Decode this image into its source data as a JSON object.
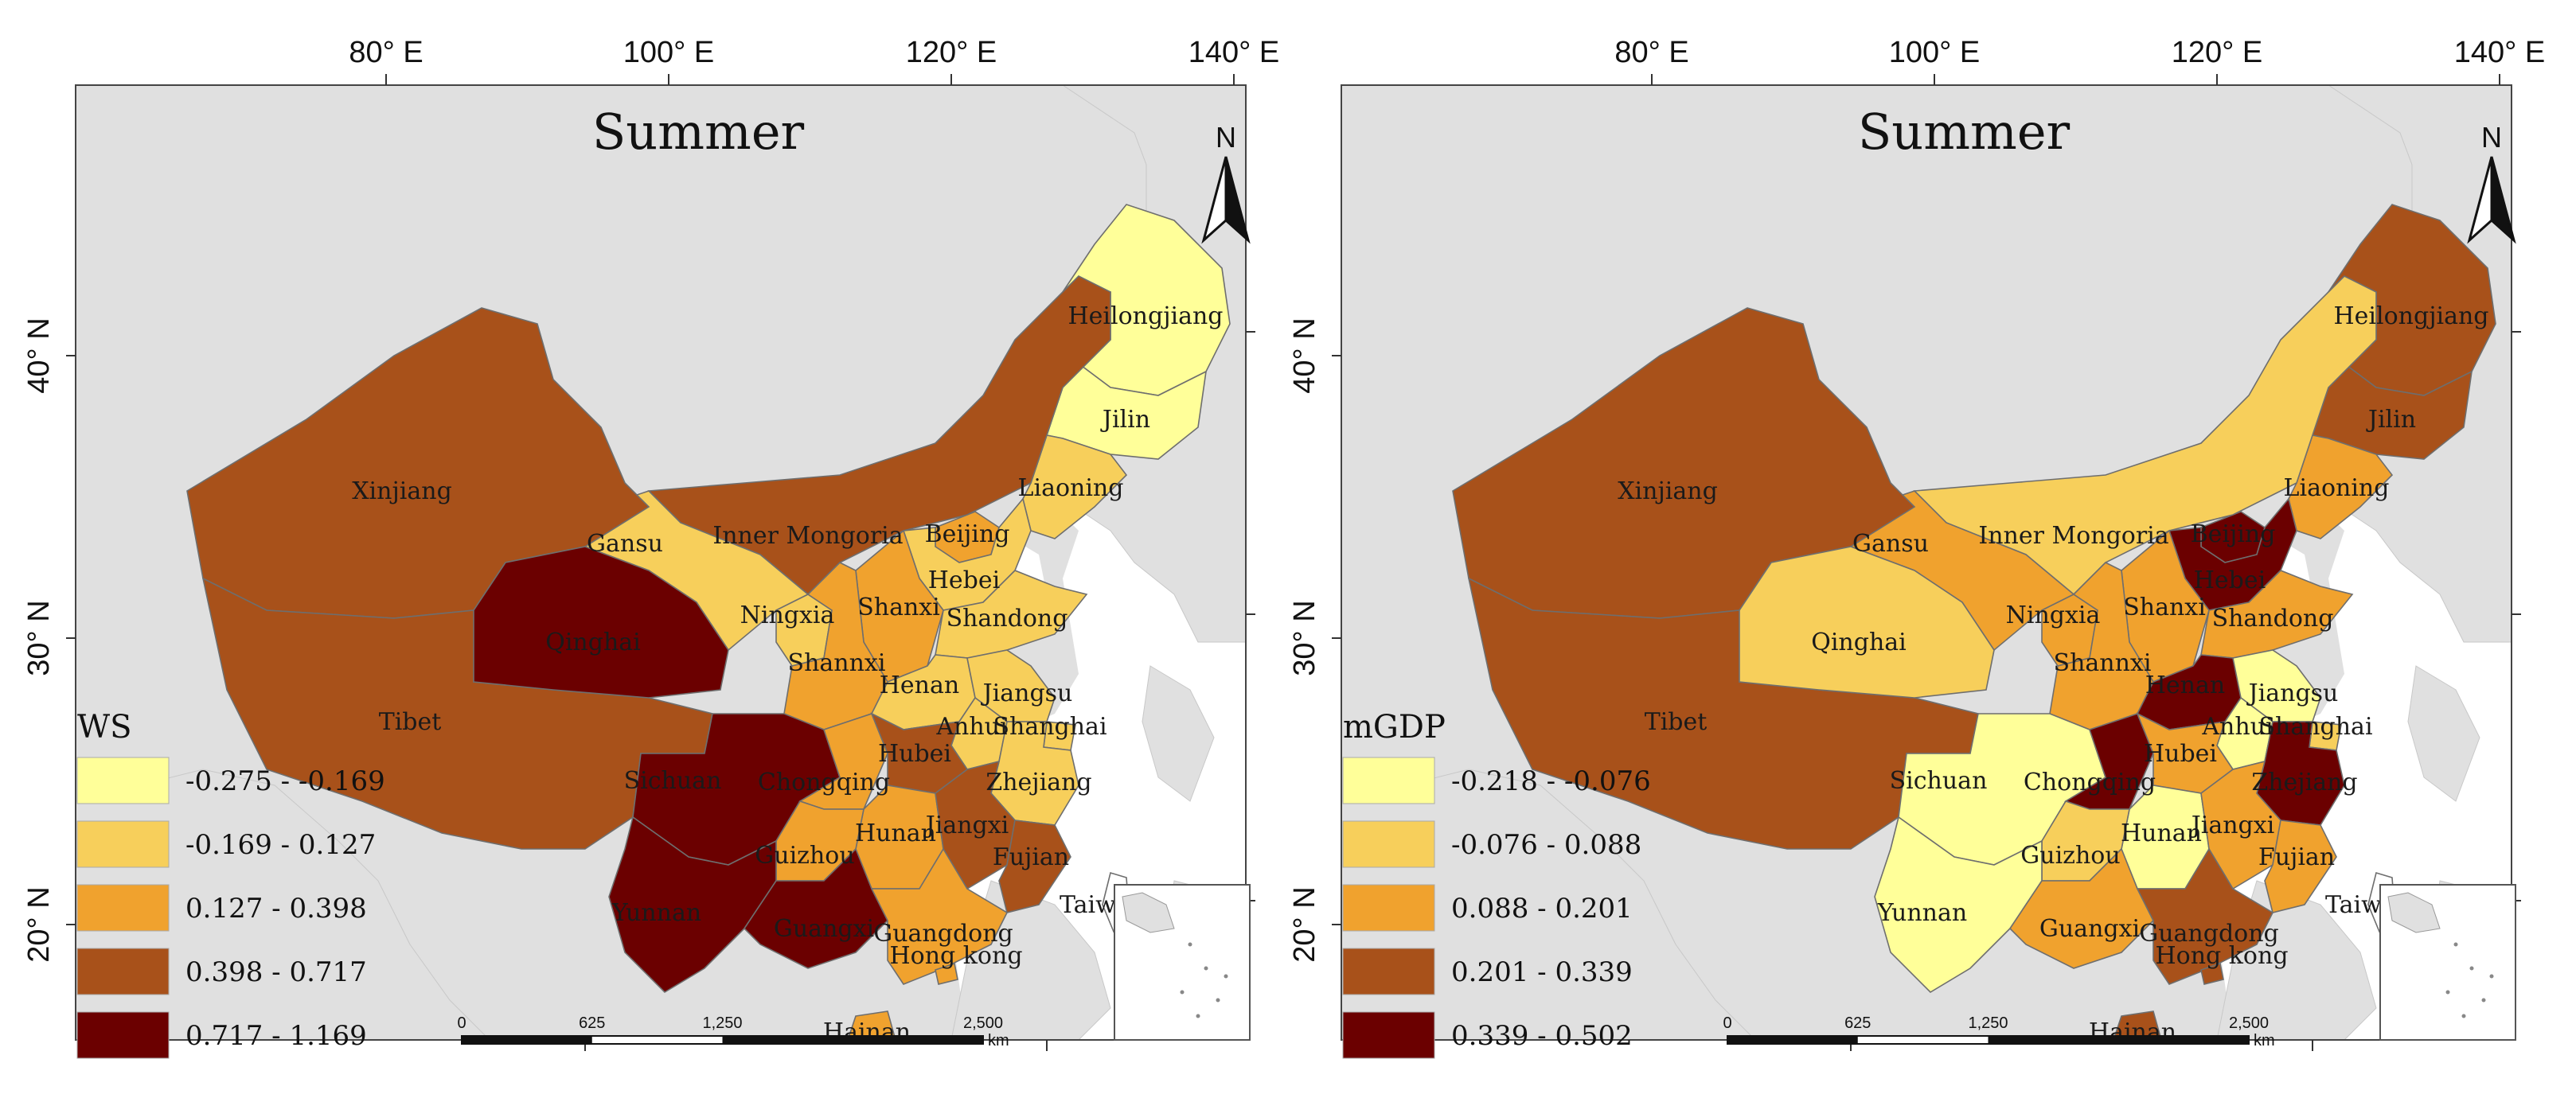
{
  "maps": [
    {
      "title": "Summer",
      "legend_title": "WS",
      "legend": [
        {
          "label": "-0.275 - -0.169",
          "color": "#ffff99"
        },
        {
          "label": "-0.169 - 0.127",
          "color": "#f7cf5b"
        },
        {
          "label": "0.127 - 0.398",
          "color": "#f0a22e"
        },
        {
          "label": "0.398 - 0.717",
          "color": "#a8511a"
        },
        {
          "label": "0.717 - 1.169",
          "color": "#6b0000"
        }
      ],
      "provinces": [
        {
          "name": "Heilongjiang",
          "class": 0
        },
        {
          "name": "Jilin",
          "class": 0
        },
        {
          "name": "Liaoning",
          "class": 1
        },
        {
          "name": "Beijing",
          "class": 2
        },
        {
          "name": "Hebei",
          "class": 1
        },
        {
          "name": "Shandong",
          "class": 1
        },
        {
          "name": "Inner Mongoria",
          "class": 3
        },
        {
          "name": "Gansu",
          "class": 1
        },
        {
          "name": "Ningxia",
          "class": 1
        },
        {
          "name": "Shanxi",
          "class": 2
        },
        {
          "name": "Shannxi",
          "class": 2
        },
        {
          "name": "Henan",
          "class": 1
        },
        {
          "name": "Jiangsu",
          "class": 1
        },
        {
          "name": "Anhui",
          "class": 1
        },
        {
          "name": "Shanghai",
          "class": 1
        },
        {
          "name": "Zhejiang",
          "class": 1
        },
        {
          "name": "Xinjiang",
          "class": 3
        },
        {
          "name": "Tibet",
          "class": 3
        },
        {
          "name": "Qinghai",
          "class": 4
        },
        {
          "name": "Sichuan",
          "class": 4
        },
        {
          "name": "Chongqing",
          "class": 2
        },
        {
          "name": "Hubei",
          "class": 3
        },
        {
          "name": "Hunan",
          "class": 2
        },
        {
          "name": "Jiangxi",
          "class": 3
        },
        {
          "name": "Fujian",
          "class": 3
        },
        {
          "name": "Guizhou",
          "class": 2
        },
        {
          "name": "Yunnan",
          "class": 4
        },
        {
          "name": "Guangxi",
          "class": 4
        },
        {
          "name": "Guangdong",
          "class": 2
        },
        {
          "name": "Hong kong",
          "class": 2
        },
        {
          "name": "Hainan",
          "class": 2
        },
        {
          "name": "Taiwan",
          "class": -1
        }
      ]
    },
    {
      "title": "Summer",
      "legend_title": "mGDP",
      "legend": [
        {
          "label": "-0.218 - -0.076",
          "color": "#ffff99"
        },
        {
          "label": "-0.076 - 0.088",
          "color": "#f7cf5b"
        },
        {
          "label": "0.088 - 0.201",
          "color": "#f0a22e"
        },
        {
          "label": "0.201 - 0.339",
          "color": "#a8511a"
        },
        {
          "label": "0.339 - 0.502",
          "color": "#6b0000"
        }
      ],
      "provinces": [
        {
          "name": "Heilongjiang",
          "class": 3
        },
        {
          "name": "Jilin",
          "class": 3
        },
        {
          "name": "Liaoning",
          "class": 2
        },
        {
          "name": "Beijing",
          "class": 4
        },
        {
          "name": "Hebei",
          "class": 4
        },
        {
          "name": "Shandong",
          "class": 2
        },
        {
          "name": "Inner Mongoria",
          "class": 1
        },
        {
          "name": "Gansu",
          "class": 2
        },
        {
          "name": "Ningxia",
          "class": 2
        },
        {
          "name": "Shanxi",
          "class": 2
        },
        {
          "name": "Shannxi",
          "class": 2
        },
        {
          "name": "Henan",
          "class": 4
        },
        {
          "name": "Jiangsu",
          "class": 0
        },
        {
          "name": "Anhui",
          "class": 0
        },
        {
          "name": "Shanghai",
          "class": 1
        },
        {
          "name": "Zhejiang",
          "class": 4
        },
        {
          "name": "Xinjiang",
          "class": 3
        },
        {
          "name": "Tibet",
          "class": 3
        },
        {
          "name": "Qinghai",
          "class": 1
        },
        {
          "name": "Sichuan",
          "class": 0
        },
        {
          "name": "Chongqing",
          "class": 4
        },
        {
          "name": "Hubei",
          "class": 2
        },
        {
          "name": "Hunan",
          "class": 0
        },
        {
          "name": "Jiangxi",
          "class": 2
        },
        {
          "name": "Fujian",
          "class": 2
        },
        {
          "name": "Guizhou",
          "class": 1
        },
        {
          "name": "Yunnan",
          "class": 0
        },
        {
          "name": "Guangxi",
          "class": 2
        },
        {
          "name": "Guangdong",
          "class": 3
        },
        {
          "name": "Hong kong",
          "class": 3
        },
        {
          "name": "Hainan",
          "class": 3
        },
        {
          "name": "Taiwan",
          "class": -1
        }
      ]
    }
  ],
  "longitude_labels": [
    "80° E",
    "100° E",
    "120° E",
    "140° E"
  ],
  "latitude_labels": [
    "40° N",
    "30° N",
    "20° N"
  ],
  "north_arrow": "N",
  "scale_bar": {
    "ticks": [
      "0",
      "625",
      "1,250",
      "2,500"
    ],
    "unit": "km"
  },
  "colors": {
    "sea": "#ffffff",
    "land_other": "#e0e0e0",
    "border": "#6e6e6e",
    "no_data": "#ffffff"
  }
}
